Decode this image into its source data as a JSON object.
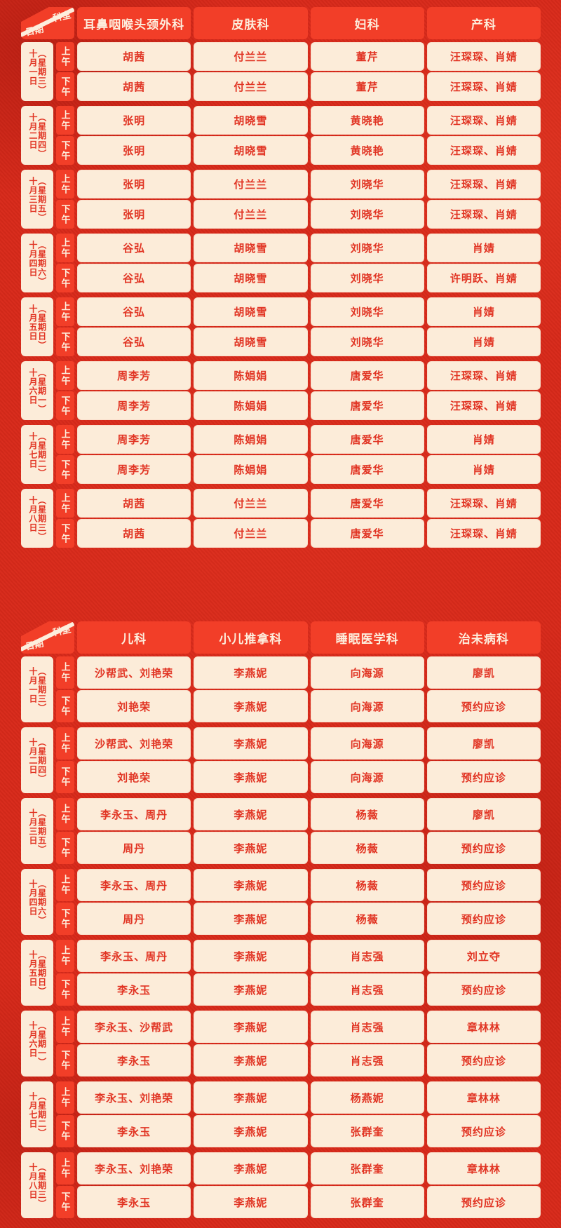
{
  "colors": {
    "page_red": "#d8291a",
    "accent_red": "#f23e28",
    "cell_bg": "#fcecd9",
    "text_red": "#e13423",
    "cream_text": "#fdeedd"
  },
  "corner": {
    "top_label": "科室",
    "bottom_label": "日期"
  },
  "session_labels": {
    "am": "上午",
    "pm": "下午"
  },
  "tables": [
    {
      "columns": [
        "耳鼻咽喉头颈外科",
        "皮肤科",
        "妇科",
        "产科"
      ],
      "rows": [
        {
          "date": "十月一日",
          "weekday": "（星期三）",
          "am": [
            "胡茜",
            "付兰兰",
            "董芹",
            "汪琛琛、肖婧"
          ],
          "pm": [
            "胡茜",
            "付兰兰",
            "董芹",
            "汪琛琛、肖婧"
          ]
        },
        {
          "date": "十月二日",
          "weekday": "（星期四）",
          "am": [
            "张明",
            "胡晓雪",
            "黄晓艳",
            "汪琛琛、肖婧"
          ],
          "pm": [
            "张明",
            "胡晓雪",
            "黄晓艳",
            "汪琛琛、肖婧"
          ]
        },
        {
          "date": "十月三日",
          "weekday": "（星期五）",
          "am": [
            "张明",
            "付兰兰",
            "刘晓华",
            "汪琛琛、肖婧"
          ],
          "pm": [
            "张明",
            "付兰兰",
            "刘晓华",
            "汪琛琛、肖婧"
          ]
        },
        {
          "date": "十月四日",
          "weekday": "（星期六）",
          "am": [
            "谷弘",
            "胡晓雪",
            "刘晓华",
            "肖婧"
          ],
          "pm": [
            "谷弘",
            "胡晓雪",
            "刘晓华",
            "许明跃、肖婧"
          ]
        },
        {
          "date": "十月五日",
          "weekday": "（星期日）",
          "am": [
            "谷弘",
            "胡晓雪",
            "刘晓华",
            "肖婧"
          ],
          "pm": [
            "谷弘",
            "胡晓雪",
            "刘晓华",
            "肖婧"
          ]
        },
        {
          "date": "十月六日",
          "weekday": "（星期一）",
          "am": [
            "周李芳",
            "陈娟娟",
            "唐爱华",
            "汪琛琛、肖婧"
          ],
          "pm": [
            "周李芳",
            "陈娟娟",
            "唐爱华",
            "汪琛琛、肖婧"
          ]
        },
        {
          "date": "十月七日",
          "weekday": "（星期二）",
          "am": [
            "周李芳",
            "陈娟娟",
            "唐爱华",
            "肖婧"
          ],
          "pm": [
            "周李芳",
            "陈娟娟",
            "唐爱华",
            "肖婧"
          ]
        },
        {
          "date": "十月八日",
          "weekday": "（星期三）",
          "am": [
            "胡茜",
            "付兰兰",
            "唐爱华",
            "汪琛琛、肖婧"
          ],
          "pm": [
            "胡茜",
            "付兰兰",
            "唐爱华",
            "汪琛琛、肖婧"
          ]
        }
      ]
    },
    {
      "columns": [
        "儿科",
        "小儿推拿科",
        "睡眠医学科",
        "治未病科"
      ],
      "rows": [
        {
          "date": "十月一日",
          "weekday": "（星期三）",
          "am": [
            "沙帮武、刘艳荣",
            "李燕妮",
            "向海源",
            "廖凯"
          ],
          "pm": [
            "刘艳荣",
            "李燕妮",
            "向海源",
            "预约应诊"
          ]
        },
        {
          "date": "十月二日",
          "weekday": "（星期四）",
          "am": [
            "沙帮武、刘艳荣",
            "李燕妮",
            "向海源",
            "廖凯"
          ],
          "pm": [
            "刘艳荣",
            "李燕妮",
            "向海源",
            "预约应诊"
          ]
        },
        {
          "date": "十月三日",
          "weekday": "（星期五）",
          "am": [
            "李永玉、周丹",
            "李燕妮",
            "杨薇",
            "廖凯"
          ],
          "pm": [
            "周丹",
            "李燕妮",
            "杨薇",
            "预约应诊"
          ]
        },
        {
          "date": "十月四日",
          "weekday": "（星期六）",
          "am": [
            "李永玉、周丹",
            "李燕妮",
            "杨薇",
            "预约应诊"
          ],
          "pm": [
            "周丹",
            "李燕妮",
            "杨薇",
            "预约应诊"
          ]
        },
        {
          "date": "十月五日",
          "weekday": "（星期日）",
          "am": [
            "李永玉、周丹",
            "李燕妮",
            "肖志强",
            "刘立夺"
          ],
          "pm": [
            "李永玉",
            "李燕妮",
            "肖志强",
            "预约应诊"
          ]
        },
        {
          "date": "十月六日",
          "weekday": "（星期一）",
          "am": [
            "李永玉、沙帮武",
            "李燕妮",
            "肖志强",
            "章林林"
          ],
          "pm": [
            "李永玉",
            "李燕妮",
            "肖志强",
            "预约应诊"
          ]
        },
        {
          "date": "十月七日",
          "weekday": "（星期二）",
          "am": [
            "李永玉、刘艳荣",
            "李燕妮",
            "杨燕妮",
            "章林林"
          ],
          "pm": [
            "李永玉",
            "李燕妮",
            "张群奎",
            "预约应诊"
          ]
        },
        {
          "date": "十月八日",
          "weekday": "（星期三）",
          "am": [
            "李永玉、刘艳荣",
            "李燕妮",
            "张群奎",
            "章林林"
          ],
          "pm": [
            "李永玉",
            "李燕妮",
            "张群奎",
            "预约应诊"
          ]
        }
      ]
    }
  ]
}
